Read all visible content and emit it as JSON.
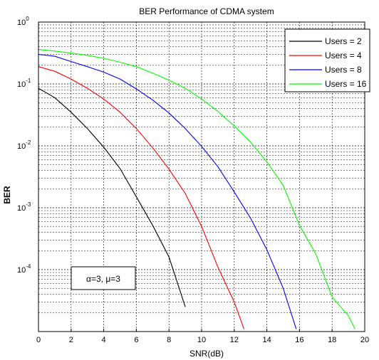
{
  "chart_data": {
    "type": "line",
    "title": "BER Performance of CDMA system",
    "xlabel": "SNR(dB)",
    "ylabel": "BER",
    "xlim": [
      0,
      20
    ],
    "ylim": [
      1e-05,
      1
    ],
    "yscale": "log",
    "grid": true,
    "legend_position": "top-right",
    "x_ticks": [
      "0",
      "2",
      "4",
      "6",
      "8",
      "10",
      "12",
      "14",
      "16",
      "18",
      "20"
    ],
    "y_ticks": [
      {
        "base": "10",
        "exp": "0",
        "value": 1
      },
      {
        "base": "10",
        "exp": "-1",
        "value": 0.1
      },
      {
        "base": "10",
        "exp": "-2",
        "value": 0.01
      },
      {
        "base": "10",
        "exp": "-3",
        "value": 0.001
      },
      {
        "base": "10",
        "exp": "-4",
        "value": 0.0001
      }
    ],
    "annotation": "α=3, μ=3",
    "series": [
      {
        "name": "Users = 2",
        "color": "#000000",
        "x": [
          0,
          1,
          2,
          3,
          4,
          5,
          6,
          7,
          8,
          9
        ],
        "y": [
          0.085,
          0.06,
          0.035,
          0.019,
          0.0095,
          0.0043,
          0.0015,
          0.00052,
          0.00016,
          2.5e-05
        ]
      },
      {
        "name": "Users = 4",
        "color": "#ff0000",
        "x": [
          0,
          1,
          2,
          3,
          4,
          5,
          6,
          7,
          8,
          9,
          10,
          11,
          12,
          12.6
        ],
        "y": [
          0.19,
          0.16,
          0.12,
          0.085,
          0.057,
          0.035,
          0.019,
          0.0093,
          0.0042,
          0.0017,
          0.0005,
          0.00011,
          3e-05,
          1.1e-05
        ]
      },
      {
        "name": "Users = 8",
        "color": "#0000ff",
        "x": [
          0,
          1,
          2,
          3,
          4,
          5,
          6,
          7,
          8,
          9,
          10,
          11,
          12,
          13,
          14,
          15,
          15.8
        ],
        "y": [
          0.3,
          0.28,
          0.23,
          0.19,
          0.155,
          0.12,
          0.083,
          0.055,
          0.034,
          0.019,
          0.0098,
          0.0046,
          0.0018,
          0.00068,
          0.00021,
          5e-05,
          1.1e-05
        ]
      },
      {
        "name": "Users = 16",
        "color": "#00ff00",
        "x": [
          0,
          1,
          2,
          3,
          4,
          5,
          6,
          7,
          8,
          9,
          10,
          11,
          12,
          13,
          14,
          15,
          16,
          17,
          18,
          19,
          19.4
        ],
        "y": [
          0.36,
          0.34,
          0.315,
          0.29,
          0.26,
          0.225,
          0.19,
          0.15,
          0.115,
          0.085,
          0.057,
          0.036,
          0.021,
          0.0115,
          0.0055,
          0.0023,
          0.00052,
          0.00018,
          3.6e-05,
          1.8e-05,
          1.1e-05
        ]
      }
    ]
  }
}
